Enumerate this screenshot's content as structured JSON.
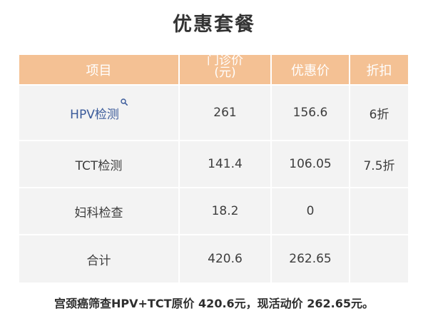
{
  "title": "优惠套餐",
  "table": {
    "headers": {
      "item": "项目",
      "clinic_price_line1": "门诊价",
      "clinic_price_line2": "(元)",
      "discount_price": "优惠价",
      "discount": "折扣"
    },
    "rows": [
      {
        "item": "HPV检测",
        "clinic_price": "261",
        "discount_price": "156.6",
        "discount": "6折"
      },
      {
        "item": "TCT检测",
        "clinic_price": "141.4",
        "discount_price": "106.05",
        "discount": "7.5折"
      },
      {
        "item": "妇科检查",
        "clinic_price": "18.2",
        "discount_price": "0",
        "discount": ""
      },
      {
        "item": "合计",
        "clinic_price": "420.6",
        "discount_price": "262.65",
        "discount": ""
      }
    ]
  },
  "footer": "宫颈癌筛查HPV+TCT原价 420.6元，现活动价  262.65元。",
  "colors": {
    "header_bg": "#f4c194",
    "cell_bg": "#f3f3f3",
    "link_text": "#3a5a9a"
  },
  "icons": {
    "hpv_link_icon": "search-icon"
  }
}
